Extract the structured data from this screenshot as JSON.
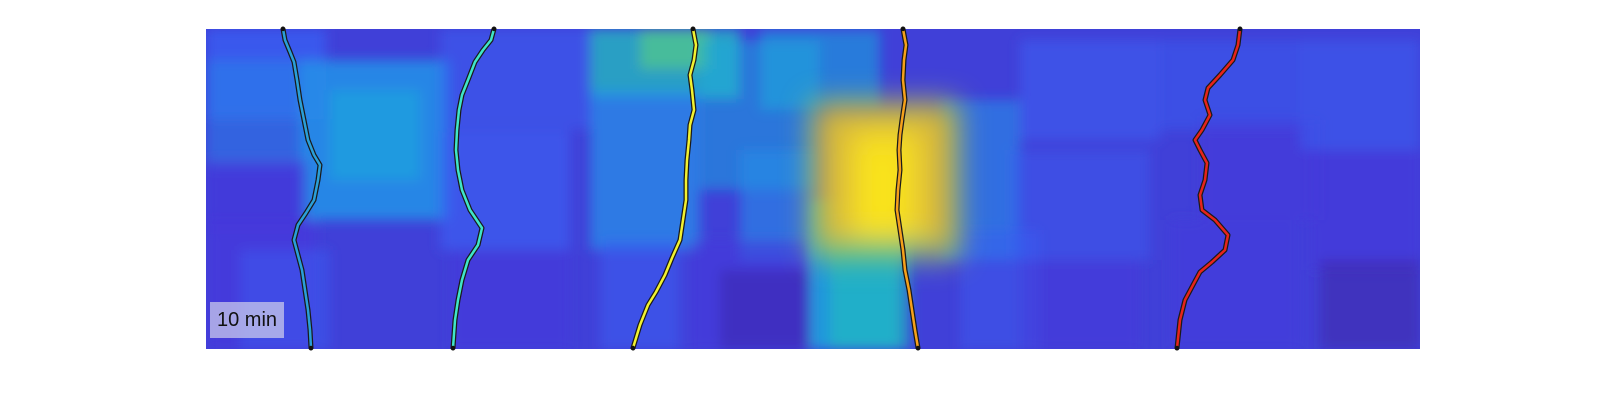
{
  "figure": {
    "time_label": "10 min",
    "colormap": [
      "#3e26a8",
      "#4538dc",
      "#3a5ef2",
      "#258ee8",
      "#1aacdd",
      "#1fbfbd",
      "#54c88a",
      "#a8c24b",
      "#e9b930",
      "#fae31c"
    ],
    "trace_colors": [
      "#2a9fd8",
      "#3fe6c8",
      "#f2f230",
      "#f6a11a",
      "#e8241a"
    ]
  }
}
